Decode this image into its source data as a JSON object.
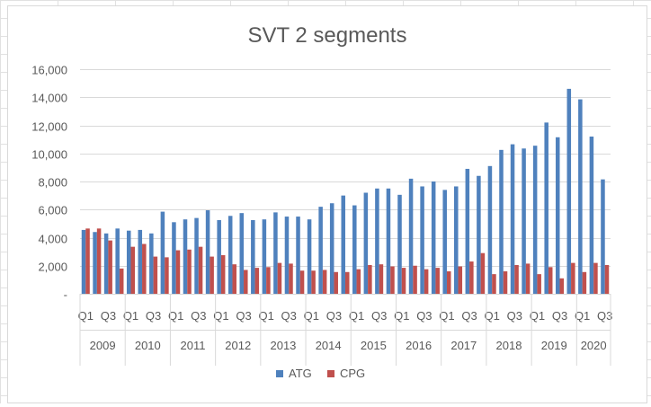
{
  "colors": {
    "ATG": "#4f81bd",
    "CPG": "#c0504d",
    "grid": "#d9d9d9",
    "text": "#595959"
  },
  "chart_data": {
    "type": "bar",
    "title": "SVT 2 segments",
    "xlabel": "",
    "ylabel": "",
    "ylim": [
      0,
      16000
    ],
    "yticks": [
      0,
      2000,
      4000,
      6000,
      8000,
      10000,
      12000,
      14000,
      16000
    ],
    "ytick_labels": [
      "-",
      "2,000",
      "4,000",
      "6,000",
      "8,000",
      "10,000",
      "12,000",
      "14,000",
      "16,000"
    ],
    "grid": true,
    "legend_position": "bottom",
    "quarter_labels": [
      "Q1",
      "Q3"
    ],
    "years": [
      "2009",
      "2010",
      "2011",
      "2012",
      "2013",
      "2014",
      "2015",
      "2016",
      "2017",
      "2018",
      "2019",
      "2020"
    ],
    "categories": [
      "2009 Q1",
      "2009 Q2",
      "2009 Q3",
      "2009 Q4",
      "2010 Q1",
      "2010 Q2",
      "2010 Q3",
      "2010 Q4",
      "2011 Q1",
      "2011 Q2",
      "2011 Q3",
      "2011 Q4",
      "2012 Q1",
      "2012 Q2",
      "2012 Q3",
      "2012 Q4",
      "2013 Q1",
      "2013 Q2",
      "2013 Q3",
      "2013 Q4",
      "2014 Q1",
      "2014 Q2",
      "2014 Q3",
      "2014 Q4",
      "2015 Q1",
      "2015 Q2",
      "2015 Q3",
      "2015 Q4",
      "2016 Q1",
      "2016 Q2",
      "2016 Q3",
      "2016 Q4",
      "2017 Q1",
      "2017 Q2",
      "2017 Q3",
      "2017 Q4",
      "2018 Q1",
      "2018 Q2",
      "2018 Q3",
      "2018 Q4",
      "2019 Q1",
      "2019 Q2",
      "2019 Q3",
      "2019 Q4",
      "2020 Q1",
      "2020 Q2",
      "2020 Q3"
    ],
    "series": [
      {
        "name": "ATG",
        "values": [
          4550,
          4400,
          4300,
          4650,
          4500,
          4550,
          4300,
          5850,
          5100,
          5300,
          5400,
          5950,
          5250,
          5550,
          5750,
          5250,
          5300,
          5800,
          5500,
          5500,
          5300,
          6200,
          6450,
          7000,
          6300,
          7200,
          7500,
          7500,
          7050,
          8200,
          7650,
          8000,
          7400,
          7650,
          8900,
          8400,
          9100,
          10250,
          10650,
          10350,
          10550,
          12200,
          11150,
          14600,
          13850,
          11200,
          8150
        ]
      },
      {
        "name": "CPG",
        "values": [
          4650,
          4650,
          3800,
          1800,
          3350,
          3550,
          2650,
          2600,
          3100,
          3150,
          3350,
          2650,
          2750,
          2100,
          1700,
          1850,
          1900,
          2200,
          2150,
          1650,
          1650,
          1700,
          1550,
          1550,
          1750,
          2050,
          2100,
          1950,
          1850,
          2000,
          1750,
          1850,
          1600,
          1950,
          2300,
          2900,
          1400,
          1600,
          2050,
          2150,
          1400,
          1900,
          1100,
          2200,
          1550,
          2200,
          2050
        ]
      }
    ]
  }
}
